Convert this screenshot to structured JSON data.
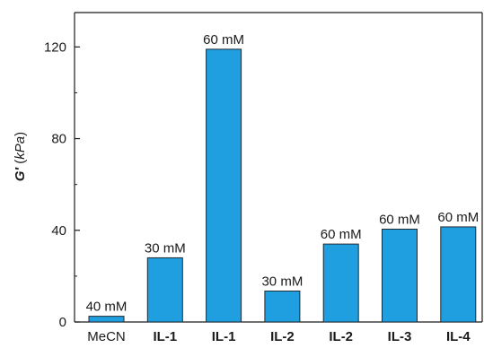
{
  "chart_data": {
    "type": "bar",
    "categories": [
      "MeCN",
      "IL-1",
      "IL-1",
      "IL-2",
      "IL-2",
      "IL-3",
      "IL-4"
    ],
    "category_bold": [
      false,
      true,
      true,
      true,
      true,
      true,
      true
    ],
    "values": [
      2.5,
      28,
      119,
      13.5,
      34,
      40.5,
      41.5
    ],
    "data_labels": [
      "40 mM",
      "30 mM",
      "60 mM",
      "30 mM",
      "60 mM",
      "60 mM",
      "60 mM"
    ],
    "ylabel": {
      "symbol": "G′",
      "open": " (",
      "unit": "kPa",
      "close": ")"
    },
    "yticks": [
      0,
      40,
      80,
      120
    ],
    "ylim": [
      0,
      135
    ],
    "bar_color": "#1f9fdf",
    "bar_edge_color": "#1f2a33",
    "grid": false
  }
}
